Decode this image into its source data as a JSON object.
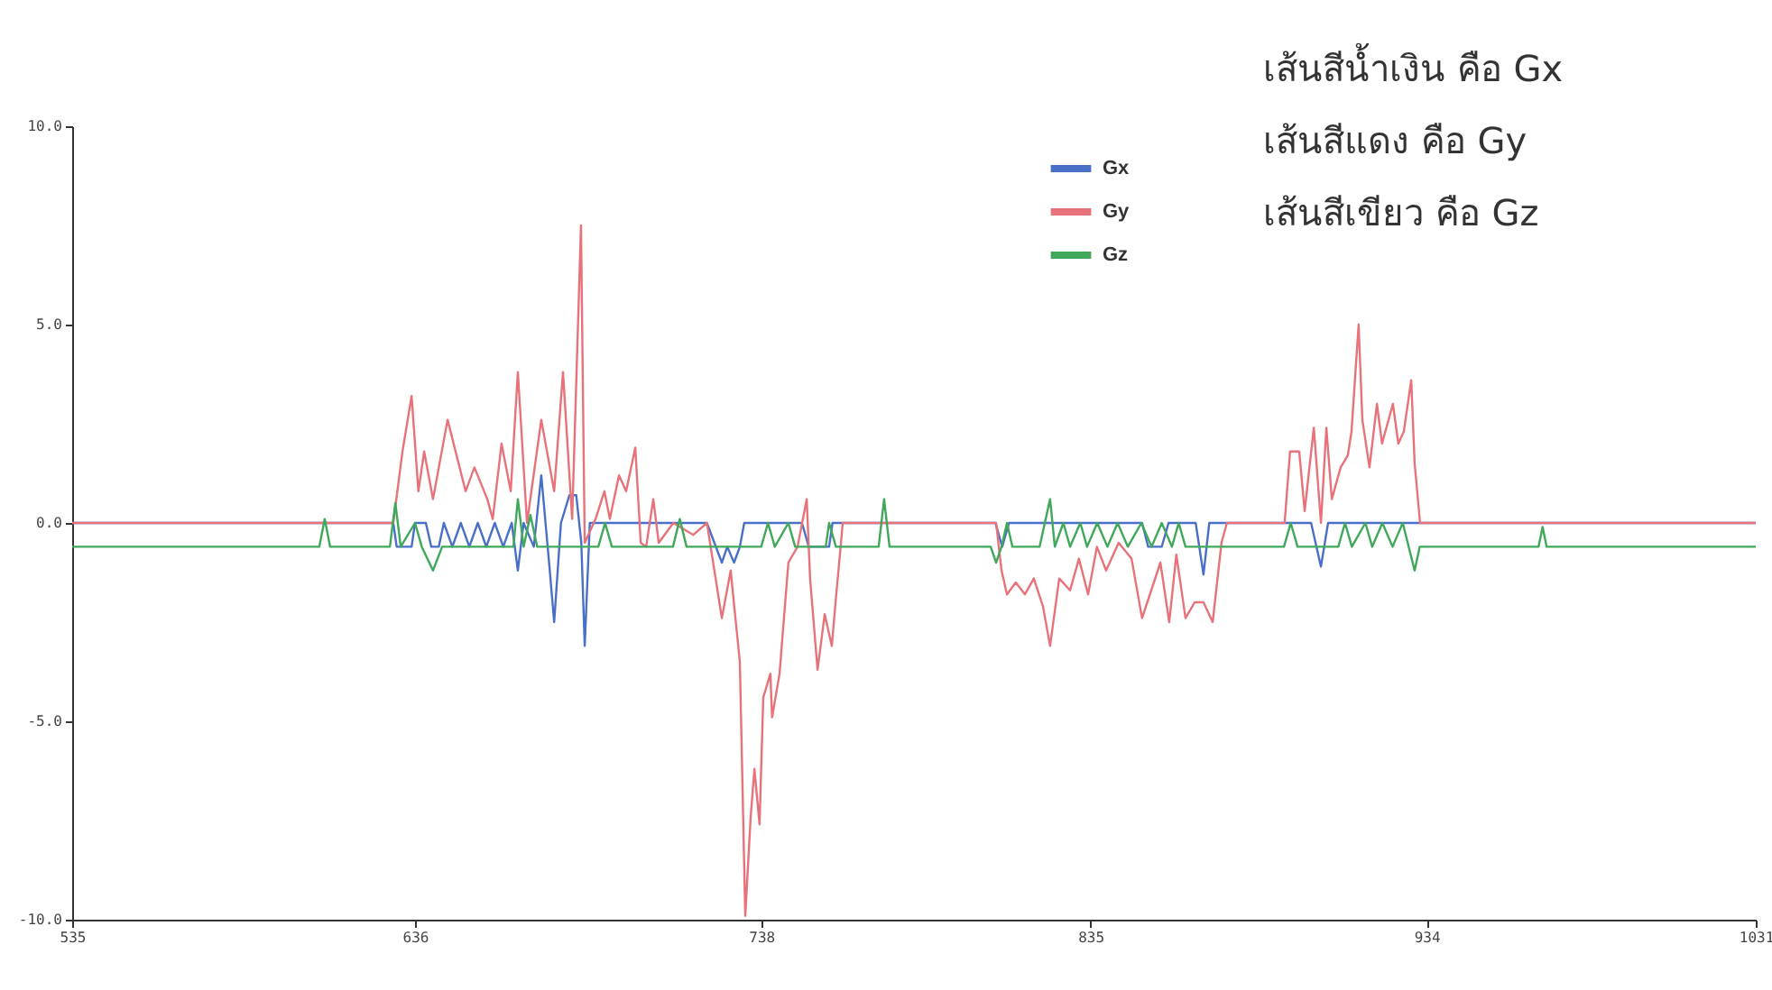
{
  "chart_data": {
    "type": "line",
    "annotations": [
      "เส้นสีน้ำเงิน คือ Gx",
      "เส้นสีแดง คือ Gy",
      "เส้นสีเขียว คือ Gz"
    ],
    "series": [
      {
        "name": "Gx",
        "color": "#4a6fc9",
        "x": [
          535,
          629.6,
          630.6,
          635,
          636,
          639.2,
          640.8,
          643,
          644.5,
          647,
          649.5,
          652,
          654.5,
          657,
          659.5,
          662,
          664.5,
          666.3,
          668,
          671,
          673.2,
          675.5,
          677,
          679,
          681.5,
          683.5,
          685,
          686,
          687.5,
          722,
          726.4,
          728,
          730,
          731.7,
          733,
          750,
          752,
          758,
          759,
          807,
          809,
          811,
          850.2,
          852,
          856,
          858,
          866,
          868.3,
          870,
          900,
          902.9,
          905,
          1031
        ],
        "values": [
          0,
          0,
          -0.6,
          -0.6,
          0,
          0,
          -0.6,
          -0.6,
          0,
          -0.6,
          0,
          -0.6,
          0,
          -0.6,
          0,
          -0.6,
          0,
          -1.2,
          0,
          -0.6,
          1.2,
          -1.0,
          -2.5,
          0,
          0.7,
          0.7,
          -0.5,
          -3.1,
          0,
          0,
          -1.0,
          -0.6,
          -1.0,
          -0.6,
          0,
          0,
          -0.6,
          -0.6,
          0,
          0,
          -0.6,
          0,
          0,
          -0.6,
          -0.6,
          0,
          0,
          -1.3,
          0,
          0,
          -1.1,
          0,
          0
        ]
      },
      {
        "name": "Gy",
        "color": "#e8727a",
        "x": [
          535,
          629.6,
          632.3,
          635,
          637,
          638.7,
          641.3,
          645.6,
          650.9,
          653.5,
          657.3,
          658.9,
          661.5,
          664.2,
          666.3,
          669,
          673.2,
          677,
          679.6,
          682.3,
          684.9,
          686,
          689.2,
          691.8,
          693.4,
          696.1,
          698.2,
          700.9,
          702.5,
          704.1,
          706.2,
          707.8,
          712.1,
          718,
          722,
          726.4,
          729,
          731.7,
          733.3,
          734.9,
          736,
          737.5,
          738.6,
          740.7,
          741.2,
          743.4,
          746,
          748.7,
          751.4,
          752.4,
          754.6,
          756.7,
          758.8,
          759.9,
          761.5,
          762,
          807.2,
          808.8,
          810.4,
          813,
          815.7,
          818.3,
          821,
          823.1,
          825.8,
          829,
          831.6,
          834.3,
          836.9,
          839.6,
          843.3,
          847.1,
          850.2,
          852.9,
          855.6,
          858.2,
          860.3,
          863,
          865.7,
          868.3,
          871,
          873.6,
          875.2,
          892.2,
          893.8,
          896.5,
          898.1,
          900.8,
          902.9,
          904.5,
          906.1,
          908.7,
          910.8,
          911.9,
          914,
          915.1,
          917.2,
          919.4,
          920.9,
          924.1,
          925.7,
          927.3,
          929.5,
          930.5,
          932.1,
          1031
        ],
        "values": [
          0,
          0,
          1.8,
          3.2,
          0.8,
          1.8,
          0.6,
          2.6,
          0.8,
          1.4,
          0.6,
          0.1,
          2.0,
          0.8,
          3.8,
          0,
          2.6,
          0.8,
          3.8,
          0.1,
          7.5,
          -0.5,
          0.1,
          0.8,
          0.1,
          1.2,
          0.8,
          1.9,
          -0.5,
          -0.6,
          0.6,
          -0.5,
          0,
          -0.3,
          0,
          -2.4,
          -1.2,
          -3.5,
          -9.9,
          -7.4,
          -6.2,
          -7.6,
          -4.4,
          -3.8,
          -4.9,
          -3.8,
          -1.0,
          -0.6,
          0.6,
          -1.4,
          -3.7,
          -2.3,
          -3.1,
          -2.0,
          -0.5,
          0,
          0,
          -1.2,
          -1.8,
          -1.5,
          -1.8,
          -1.4,
          -2.1,
          -3.1,
          -1.4,
          -1.7,
          -0.9,
          -1.8,
          -0.6,
          -1.2,
          -0.5,
          -0.9,
          -2.4,
          -1.7,
          -1.0,
          -2.5,
          -0.8,
          -2.4,
          -2.0,
          -2.0,
          -2.5,
          -0.5,
          0,
          0,
          1.8,
          1.8,
          0.3,
          2.4,
          0,
          2.4,
          0.6,
          1.4,
          1.7,
          2.3,
          5.0,
          2.6,
          1.4,
          3.0,
          2.0,
          3.0,
          2.0,
          2.3,
          3.6,
          1.5,
          0,
          0
        ]
      },
      {
        "name": "Gz",
        "color": "#3fa85a",
        "x": [
          535,
          607.8,
          609.4,
          611,
          628.6,
          630.2,
          631.8,
          636,
          638,
          641.3,
          644,
          665,
          666.3,
          668,
          670,
          672,
          690,
          692,
          694,
          712,
          714,
          716,
          738,
          740,
          742,
          746,
          748,
          757,
          758,
          760,
          772.6,
          774.2,
          775.8,
          805.6,
          807.2,
          808.8,
          810.4,
          812,
          820,
          823.1,
          824.5,
          827,
          829,
          832,
          834,
          837,
          840,
          843,
          846,
          850,
          853,
          856,
          859,
          861,
          863,
          892,
          894,
          896,
          908,
          910,
          912,
          916,
          918,
          921,
          924,
          927,
          930.5,
          932,
          967,
          968.2,
          969.4,
          1031
        ],
        "values": [
          -0.6,
          -0.6,
          0.1,
          -0.6,
          -0.6,
          0.5,
          -0.6,
          0,
          -0.6,
          -1.2,
          -0.6,
          -0.6,
          0.6,
          -0.6,
          0.2,
          -0.6,
          -0.6,
          0,
          -0.6,
          -0.6,
          0.1,
          -0.6,
          -0.6,
          0,
          -0.6,
          0,
          -0.6,
          -0.6,
          0,
          -0.6,
          -0.6,
          0.6,
          -0.6,
          -0.6,
          -1.0,
          -0.6,
          0,
          -0.6,
          -0.6,
          0.6,
          -0.6,
          0,
          -0.6,
          0,
          -0.6,
          0,
          -0.6,
          0,
          -0.6,
          0,
          -0.6,
          0,
          -0.6,
          0,
          -0.6,
          -0.6,
          0,
          -0.6,
          -0.6,
          0,
          -0.6,
          0,
          -0.6,
          0,
          -0.6,
          0,
          -1.2,
          -0.6,
          -0.6,
          -0.1,
          -0.6,
          -0.6
        ]
      }
    ],
    "xlim": [
      535,
      1031
    ],
    "xticks": [
      535,
      636,
      738,
      835,
      934,
      1031
    ],
    "ylim": [
      -10,
      10
    ],
    "yticks": [
      {
        "value": -10,
        "label": "-10.0"
      },
      {
        "value": -5,
        "label": "-5.0"
      },
      {
        "value": 0,
        "label": "0.0"
      },
      {
        "value": 5,
        "label": "5.0"
      },
      {
        "value": 10,
        "label": "10.0"
      }
    ],
    "grid": false,
    "legend": "top right",
    "marker": "none",
    "line_style": "solid"
  }
}
